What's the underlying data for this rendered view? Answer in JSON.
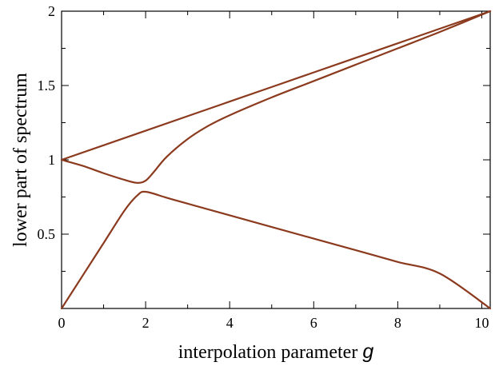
{
  "chart_data": {
    "type": "line",
    "xlabel": "interpolation parameter",
    "xlabel_variable": "g",
    "ylabel": "lower part of spectrum",
    "xlim": [
      0,
      10.2
    ],
    "ylim": [
      0,
      2
    ],
    "x_ticks": [
      0,
      2,
      4,
      6,
      8,
      10
    ],
    "x_tick_labels": [
      "0",
      "2",
      "4",
      "6",
      "8",
      "10"
    ],
    "y_ticks": [
      0.5,
      1,
      1.5,
      2
    ],
    "y_tick_labels": [
      "0.5",
      "1",
      "1.5",
      "2"
    ],
    "grid": false,
    "line_color": "#8B3A1E",
    "series": [
      {
        "x": [
          0,
          2,
          4,
          6,
          8,
          10.2
        ],
        "values": [
          1.0,
          1.196,
          1.392,
          1.588,
          1.784,
          2.0
        ]
      },
      {
        "x": [
          0,
          0.5,
          1.0,
          1.5,
          1.8,
          2.0,
          2.2,
          2.5,
          3.0,
          3.5,
          4.0,
          5.0,
          6.0,
          7.0,
          8.0,
          9.0,
          10.2
        ],
        "values": [
          1.0,
          0.96,
          0.91,
          0.865,
          0.845,
          0.86,
          0.92,
          1.02,
          1.14,
          1.23,
          1.3,
          1.42,
          1.53,
          1.64,
          1.75,
          1.86,
          2.0
        ]
      },
      {
        "x": [
          0,
          0.5,
          1.0,
          1.5,
          1.8,
          2.0,
          2.5,
          3.0,
          4.0,
          5.0,
          6.0,
          7.0,
          8.0,
          9.0,
          10.2
        ],
        "values": [
          0.0,
          0.22,
          0.44,
          0.66,
          0.76,
          0.785,
          0.745,
          0.705,
          0.627,
          0.548,
          0.47,
          0.392,
          0.313,
          0.235,
          0.0
        ]
      }
    ]
  }
}
